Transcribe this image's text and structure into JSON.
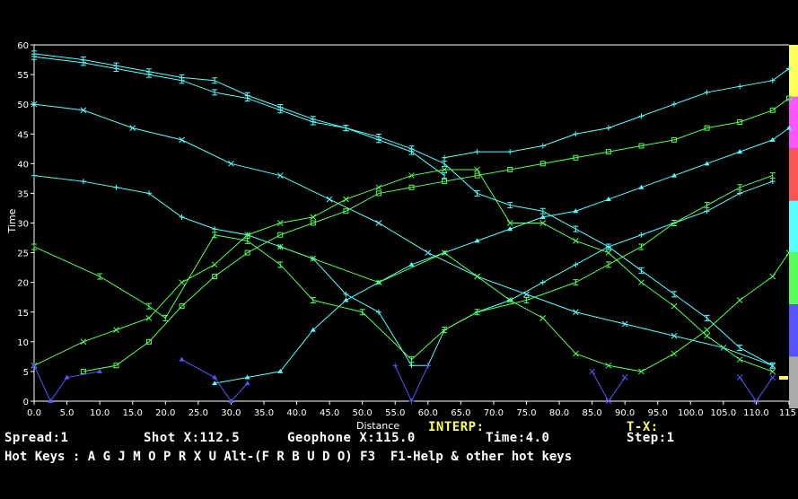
{
  "colors": {
    "series": "#55ffff",
    "cross": "#55ff55",
    "blue": "#5555ff",
    "axis": "#ffffff",
    "background": "#000000",
    "palette": [
      "#ffff55",
      "#ff55ff",
      "#ff5555",
      "#55ffff",
      "#55ff55",
      "#5555ff",
      "#aaaaaa"
    ]
  },
  "chart_data": {
    "type": "line",
    "xlabel": "Distance",
    "ylabel": "Time",
    "xlim": [
      0,
      115
    ],
    "ylim": [
      0,
      60
    ],
    "x_ticks": [
      "0.0",
      "5.0",
      "10.0",
      "15.0",
      "20.0",
      "25.0",
      "30.0",
      "35.0",
      "40.0",
      "45.0",
      "50.0",
      "55.0",
      "60.0",
      "65.0",
      "70.0",
      "75.0",
      "80.0",
      "85.0",
      "90.0",
      "95.0",
      "100.0",
      "105.0",
      "110.0",
      "115"
    ],
    "y_ticks": [
      "0",
      "5",
      "10",
      "15",
      "20",
      "25",
      "30",
      "35",
      "40",
      "45",
      "50",
      "55",
      "60"
    ],
    "grid": false,
    "series": [
      {
        "marker": "bar",
        "color": "#55ffff",
        "points": [
          [
            0,
            58.5
          ],
          [
            7.5,
            57.5
          ],
          [
            12.5,
            56.5
          ],
          [
            17.5,
            55.5
          ],
          [
            22.5,
            54.5
          ],
          [
            27.5,
            54
          ],
          [
            32.5,
            51.5
          ],
          [
            37.5,
            49.5
          ],
          [
            42.5,
            47.5
          ],
          [
            47.5,
            46
          ],
          [
            52.5,
            44.5
          ],
          [
            57.5,
            42.5
          ],
          [
            62.5,
            40
          ],
          [
            67.5,
            35
          ],
          [
            72.5,
            33
          ],
          [
            77.5,
            32
          ],
          [
            82.5,
            29
          ],
          [
            87.5,
            26
          ],
          [
            92.5,
            22
          ],
          [
            97.5,
            18
          ],
          [
            102.5,
            14
          ],
          [
            107.5,
            9
          ],
          [
            112.5,
            6
          ]
        ]
      },
      {
        "marker": "bar",
        "color": "#55ffff",
        "points": [
          [
            0,
            58
          ],
          [
            7.5,
            57
          ],
          [
            12.5,
            56
          ],
          [
            17.5,
            55
          ],
          [
            22.5,
            54
          ],
          [
            27.5,
            52
          ],
          [
            32.5,
            51
          ],
          [
            37.5,
            49
          ],
          [
            42.5,
            47
          ],
          [
            47.5,
            46
          ],
          [
            52.5,
            44
          ],
          [
            57.5,
            42
          ],
          [
            62.5,
            38
          ]
        ]
      },
      {
        "marker": "x",
        "color": "#55ffff",
        "points": [
          [
            0,
            50
          ],
          [
            7.5,
            49
          ],
          [
            15,
            46
          ],
          [
            22.5,
            44
          ],
          [
            30,
            40
          ],
          [
            37.5,
            38
          ],
          [
            45,
            34
          ],
          [
            52.5,
            30
          ],
          [
            60,
            25
          ],
          [
            67.5,
            21
          ],
          [
            75,
            18
          ],
          [
            82.5,
            15
          ],
          [
            90,
            13
          ],
          [
            97.5,
            11
          ],
          [
            105,
            9
          ],
          [
            112.5,
            6
          ]
        ]
      },
      {
        "marker": "plus",
        "color": "#55ffff",
        "points": [
          [
            0,
            38
          ],
          [
            7.5,
            37
          ],
          [
            12.5,
            36
          ],
          [
            17.5,
            35
          ],
          [
            22.5,
            31
          ],
          [
            27.5,
            29
          ],
          [
            32.5,
            28
          ],
          [
            37.5,
            26
          ],
          [
            42.5,
            24
          ],
          [
            47.5,
            18
          ],
          [
            52.5,
            15
          ],
          [
            57.5,
            6
          ],
          [
            60,
            6
          ],
          [
            62.5,
            12
          ],
          [
            67.5,
            15
          ],
          [
            72.5,
            17
          ],
          [
            77.5,
            20
          ],
          [
            82.5,
            23
          ],
          [
            87.5,
            26
          ],
          [
            92.5,
            28
          ],
          [
            97.5,
            30
          ],
          [
            102.5,
            32
          ],
          [
            107.5,
            35
          ],
          [
            112.5,
            37
          ]
        ]
      },
      {
        "marker": "bar",
        "color": "#55ff55",
        "points": [
          [
            0,
            26
          ],
          [
            10,
            21
          ],
          [
            17.5,
            16
          ],
          [
            20,
            14
          ],
          [
            27.5,
            28
          ],
          [
            32.5,
            27
          ],
          [
            37.5,
            23
          ],
          [
            42.5,
            17
          ],
          [
            50,
            15
          ],
          [
            57.5,
            7
          ],
          [
            62.5,
            12
          ],
          [
            67.5,
            15
          ],
          [
            75,
            17
          ],
          [
            82.5,
            20
          ],
          [
            87.5,
            23
          ],
          [
            92.5,
            26
          ],
          [
            97.5,
            30
          ],
          [
            102.5,
            33
          ],
          [
            107.5,
            36
          ],
          [
            112.5,
            38
          ]
        ]
      },
      {
        "marker": "x",
        "color": "#55ff55",
        "points": [
          [
            0,
            6
          ],
          [
            7.5,
            10
          ],
          [
            12.5,
            12
          ],
          [
            17.5,
            14
          ],
          [
            22.5,
            20
          ],
          [
            27.5,
            23
          ],
          [
            32.5,
            28
          ],
          [
            37.5,
            30
          ],
          [
            42.5,
            31
          ],
          [
            47.5,
            34
          ],
          [
            52.5,
            36
          ],
          [
            57.5,
            38
          ],
          [
            62.5,
            39
          ],
          [
            67.5,
            39
          ],
          [
            72.5,
            30
          ],
          [
            77.5,
            30
          ],
          [
            82.5,
            27
          ],
          [
            87.5,
            25
          ],
          [
            92.5,
            20
          ],
          [
            97.5,
            16
          ],
          [
            102.5,
            11
          ],
          [
            107.5,
            7
          ],
          [
            112.5,
            5
          ]
        ]
      },
      {
        "marker": "square",
        "color": "#55ff55",
        "points": [
          [
            7.5,
            5
          ],
          [
            12.5,
            6
          ],
          [
            17.5,
            10
          ],
          [
            22.5,
            16
          ],
          [
            27.5,
            21
          ],
          [
            32.5,
            25
          ],
          [
            37.5,
            28
          ],
          [
            42.5,
            30
          ],
          [
            47.5,
            32
          ],
          [
            52.5,
            35
          ],
          [
            57.5,
            36
          ],
          [
            62.5,
            37
          ],
          [
            67.5,
            38
          ],
          [
            72.5,
            39
          ],
          [
            77.5,
            40
          ],
          [
            82.5,
            41
          ],
          [
            87.5,
            42
          ],
          [
            92.5,
            43
          ],
          [
            97.5,
            44
          ],
          [
            102.5,
            46
          ],
          [
            107.5,
            47
          ],
          [
            112.5,
            49
          ],
          [
            115,
            51
          ]
        ]
      },
      {
        "marker": "triangle",
        "color": "#55ffff",
        "points": [
          [
            27.5,
            3
          ],
          [
            32.5,
            4
          ],
          [
            37.5,
            5
          ],
          [
            42.5,
            12
          ],
          [
            47.5,
            17
          ],
          [
            52.5,
            20
          ],
          [
            57.5,
            23
          ],
          [
            62.5,
            25
          ],
          [
            67.5,
            27
          ],
          [
            72.5,
            29
          ],
          [
            77.5,
            31
          ],
          [
            82.5,
            32
          ],
          [
            87.5,
            34
          ],
          [
            92.5,
            36
          ],
          [
            97.5,
            38
          ],
          [
            102.5,
            40
          ],
          [
            107.5,
            42
          ],
          [
            112.5,
            44
          ],
          [
            115,
            46
          ]
        ]
      },
      {
        "marker": "plus",
        "color": "#55ffff",
        "points": [
          [
            62.5,
            41
          ],
          [
            67.5,
            42
          ],
          [
            72.5,
            42
          ],
          [
            77.5,
            43
          ],
          [
            82.5,
            45
          ],
          [
            87.5,
            46
          ],
          [
            92.5,
            48
          ],
          [
            97.5,
            50
          ],
          [
            102.5,
            52
          ],
          [
            107.5,
            53
          ],
          [
            112.5,
            54
          ],
          [
            115,
            56
          ]
        ]
      },
      {
        "marker": "x",
        "color": "#55ff55",
        "points": [
          [
            37.5,
            26
          ],
          [
            42.5,
            24
          ],
          [
            52.5,
            20
          ],
          [
            62.5,
            25
          ],
          [
            67.5,
            21
          ],
          [
            72.5,
            17
          ],
          [
            77.5,
            14
          ],
          [
            82.5,
            8
          ],
          [
            87.5,
            6
          ],
          [
            92.5,
            5
          ],
          [
            97.5,
            8
          ],
          [
            102.5,
            12
          ],
          [
            107.5,
            17
          ],
          [
            112.5,
            21
          ],
          [
            115,
            25
          ]
        ]
      },
      {
        "marker": "triangle",
        "color": "#5555ff",
        "points": [
          [
            0,
            6
          ],
          [
            2.5,
            0
          ],
          [
            5,
            4
          ],
          [
            10,
            5
          ]
        ]
      },
      {
        "marker": "triangle",
        "color": "#5555ff",
        "points": [
          [
            22.5,
            7
          ],
          [
            27.5,
            4
          ],
          [
            30,
            0
          ],
          [
            32.5,
            3
          ]
        ]
      },
      {
        "marker": "plus",
        "color": "#5555ff",
        "points": [
          [
            55,
            6
          ],
          [
            57.5,
            0
          ],
          [
            60,
            6
          ]
        ]
      },
      {
        "marker": "x",
        "color": "#5555ff",
        "points": [
          [
            85,
            5
          ],
          [
            87.5,
            0
          ],
          [
            90,
            4
          ]
        ]
      },
      {
        "marker": "x",
        "color": "#5555ff",
        "points": [
          [
            107.5,
            4
          ],
          [
            110,
            0
          ],
          [
            112.5,
            4
          ]
        ]
      }
    ]
  },
  "status": {
    "interp_label": "INTERP:",
    "tx_label": "T-X:",
    "spread": "Spread:1",
    "shot": "Shot X:112.5",
    "geophone": "Geophone X:115.0",
    "time": "Time:4.0",
    "step": "Step:1"
  },
  "hotkeys": {
    "text": "Hot Keys : A G J M O P R X U Alt-(F R B U D O) F3  F1-Help & other hot keys"
  }
}
